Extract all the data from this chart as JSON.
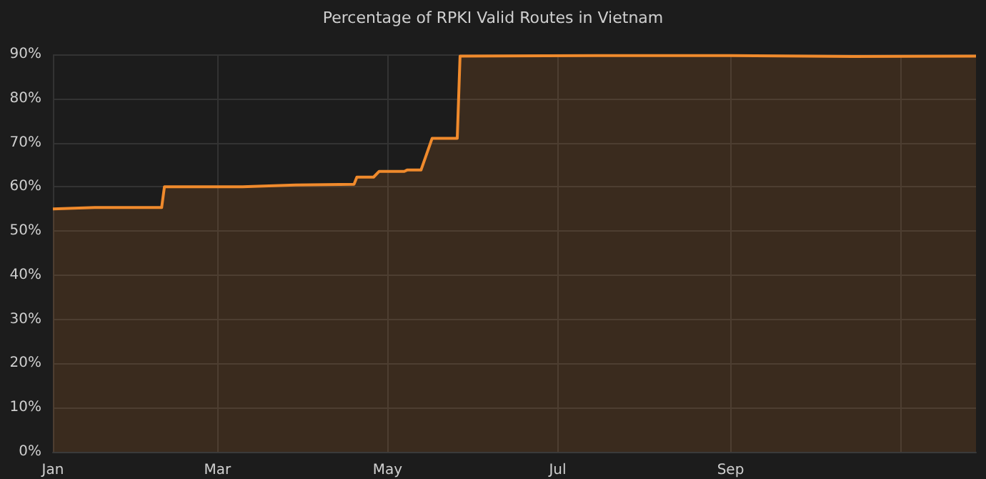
{
  "chart_data": {
    "type": "area",
    "title": "Percentage of RPKI Valid Routes in Vietnam",
    "x": [
      "--01-01",
      "--01-16",
      "--02-09",
      "--02-10",
      "--03-10",
      "--03-29",
      "--04-19",
      "--04-20",
      "--04-26",
      "--04-28",
      "--05-07",
      "--05-08",
      "--05-13",
      "--05-17",
      "--05-26",
      "--05-27",
      "--07-15",
      "--09-01",
      "--10-15",
      "--11-28"
    ],
    "series": [
      {
        "color": "#f08a2c",
        "values": [
          55.0,
          55.3,
          55.3,
          60.0,
          60.0,
          60.4,
          60.6,
          62.2,
          62.2,
          63.5,
          63.5,
          63.8,
          63.8,
          71.0,
          71.0,
          89.6,
          89.7,
          89.7,
          89.5,
          89.6
        ]
      }
    ],
    "xlim": [
      "--01-01",
      "--11-28"
    ],
    "xticks": [
      {
        "value": "--01-01",
        "label": "Jan"
      },
      {
        "value": "--03-01",
        "label": "Mar"
      },
      {
        "value": "--05-01",
        "label": "May"
      },
      {
        "value": "--07-01",
        "label": "Jul"
      },
      {
        "value": "--09-01",
        "label": "Sep"
      },
      {
        "value": "--11-01",
        "label": null
      }
    ],
    "ylim": [
      0,
      90
    ],
    "yticks": [
      {
        "value": 0,
        "label": "0%"
      },
      {
        "value": 10,
        "label": "10%"
      },
      {
        "value": 20,
        "label": "20%"
      },
      {
        "value": 30,
        "label": "30%"
      },
      {
        "value": 40,
        "label": "40%"
      },
      {
        "value": 50,
        "label": "50%"
      },
      {
        "value": 60,
        "label": "60%"
      },
      {
        "value": 70,
        "label": "70%"
      },
      {
        "value": 80,
        "label": "80%"
      },
      {
        "value": 90,
        "label": "90%"
      }
    ],
    "grid": true,
    "marker": "none",
    "line_style": "solid"
  }
}
